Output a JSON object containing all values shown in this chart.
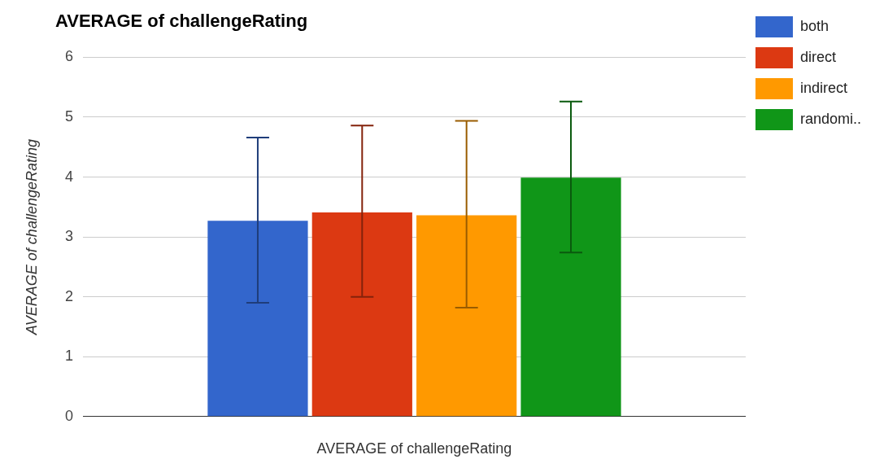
{
  "chart_data": {
    "type": "bar",
    "title": "AVERAGE of challengeRating",
    "xlabel": "AVERAGE of challengeRating",
    "ylabel": "AVERAGE of challengeRating",
    "categories": [
      null
    ],
    "series": [
      {
        "name": "both",
        "color": "#3366cc",
        "values": [
          3.27
        ],
        "errors": [
          [
            1.9,
            4.66
          ]
        ]
      },
      {
        "name": "direct",
        "color": "#dc3912",
        "values": [
          3.41
        ],
        "errors": [
          [
            2.0,
            4.86
          ]
        ]
      },
      {
        "name": "indirect",
        "color": "#ff9900",
        "values": [
          3.36
        ],
        "errors": [
          [
            1.82,
            4.94
          ]
        ]
      },
      {
        "name": "randomi..",
        "color": "#109618",
        "values": [
          3.99
        ],
        "errors": [
          [
            2.74,
            5.26
          ]
        ]
      }
    ],
    "ylim": [
      0,
      6
    ],
    "yticks": [
      0,
      1,
      2,
      3,
      4,
      5,
      6
    ],
    "grid": "y",
    "legend": "top right"
  }
}
